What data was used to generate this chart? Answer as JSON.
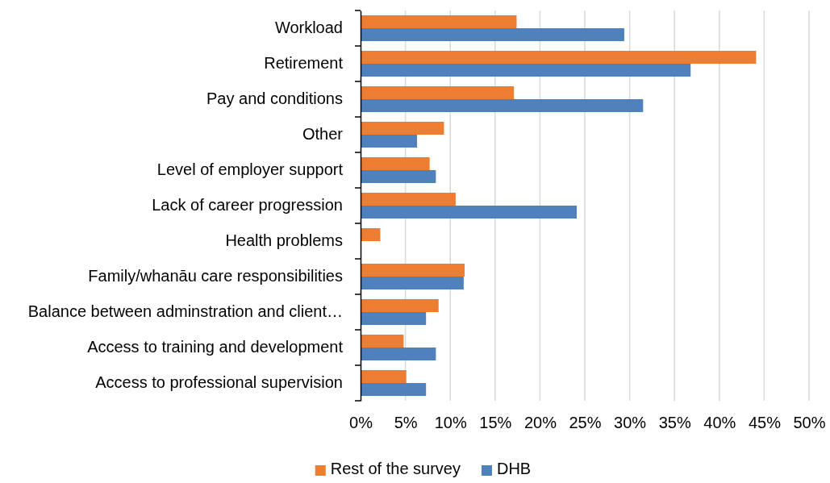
{
  "chart_data": {
    "type": "bar",
    "orientation": "horizontal",
    "categories": [
      "Workload",
      "Retirement",
      "Pay and conditions",
      "Other",
      "Level of employer support",
      "Lack of career progression",
      "Health problems",
      "Family/whanāu care responsibilities",
      "Balance between adminstration and client…",
      "Access to training and development",
      "Access to professional supervision"
    ],
    "series": [
      {
        "name": "Rest of the survey",
        "color": "#ed7d31",
        "values": [
          17.4,
          44.1,
          17.1,
          9.3,
          7.7,
          10.6,
          2.2,
          11.6,
          8.7,
          4.8,
          5.1
        ]
      },
      {
        "name": "DHB",
        "color": "#4f81bd",
        "values": [
          29.4,
          36.8,
          31.5,
          6.3,
          8.4,
          24.1,
          0,
          11.5,
          7.3,
          8.4,
          7.3
        ]
      }
    ],
    "xlim": [
      0,
      50
    ],
    "xticks": [
      {
        "value": 0,
        "label": "0%"
      },
      {
        "value": 5,
        "label": "5%"
      },
      {
        "value": 10,
        "label": "10%"
      },
      {
        "value": 15,
        "label": "15%"
      },
      {
        "value": 20,
        "label": "20%"
      },
      {
        "value": 25,
        "label": "25%"
      },
      {
        "value": 30,
        "label": "30%"
      },
      {
        "value": 35,
        "label": "35%"
      },
      {
        "value": 40,
        "label": "40%"
      },
      {
        "value": 45,
        "label": "45%"
      },
      {
        "value": 50,
        "label": "50%"
      }
    ],
    "grid": "x",
    "legend": "bottom"
  }
}
